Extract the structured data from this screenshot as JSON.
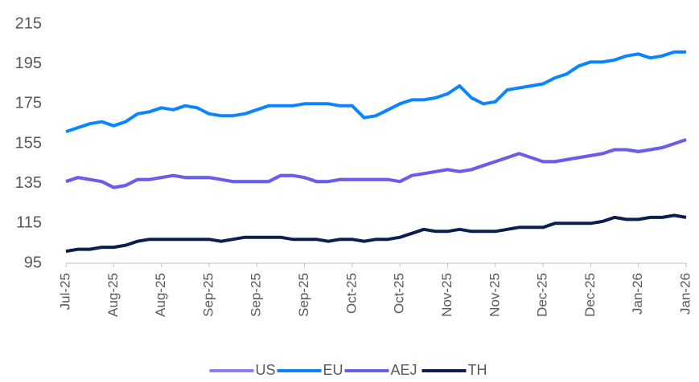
{
  "chart_data": {
    "type": "line",
    "categories": [
      "Jul-25",
      null,
      null,
      null,
      "Aug-25",
      null,
      null,
      null,
      "Aug-25",
      null,
      null,
      null,
      "Sep-25",
      null,
      null,
      null,
      "Sep-25",
      null,
      null,
      null,
      "Sep-25",
      null,
      null,
      null,
      "Oct-25",
      null,
      null,
      null,
      "Oct-25",
      null,
      null,
      null,
      "Nov-25",
      null,
      null,
      null,
      "Nov-25",
      null,
      null,
      null,
      "Dec-25",
      null,
      null,
      null,
      "Dec-25",
      null,
      null,
      null,
      "Jan-26",
      null,
      null,
      null,
      "Jan-26"
    ],
    "series": [
      {
        "name": "US",
        "color": "#8c7ff5",
        "values": [
          136,
          138,
          137,
          136,
          133,
          134,
          137,
          137,
          138,
          139,
          138,
          138,
          138,
          137,
          136,
          136,
          136,
          136,
          139,
          139,
          138,
          136,
          136,
          137,
          137,
          137,
          137,
          137,
          136,
          139,
          140,
          141,
          142,
          141,
          142,
          144,
          146,
          148,
          150,
          148,
          146,
          146,
          147,
          148,
          149,
          150,
          152,
          152,
          151,
          152,
          153,
          155,
          157
        ]
      },
      {
        "name": "EU",
        "color": "#0a84ff",
        "values": [
          161,
          163,
          165,
          166,
          164,
          166,
          170,
          171,
          173,
          172,
          174,
          173,
          170,
          169,
          169,
          170,
          172,
          174,
          174,
          174,
          175,
          175,
          175,
          174,
          174,
          168,
          169,
          172,
          175,
          177,
          177,
          178,
          180,
          184,
          178,
          175,
          176,
          182,
          183,
          184,
          185,
          188,
          190,
          194,
          196,
          196,
          197,
          199,
          200,
          198,
          199,
          201,
          201
        ]
      },
      {
        "name": "AEJ",
        "color": "#6a5ced",
        "values": [
          136,
          138,
          137,
          136,
          133,
          134,
          137,
          137,
          138,
          139,
          138,
          138,
          138,
          137,
          136,
          136,
          136,
          136,
          139,
          139,
          138,
          136,
          136,
          137,
          137,
          137,
          137,
          137,
          136,
          139,
          140,
          141,
          142,
          141,
          142,
          144,
          146,
          148,
          150,
          148,
          146,
          146,
          147,
          148,
          149,
          150,
          152,
          152,
          151,
          152,
          153,
          155,
          157
        ]
      },
      {
        "name": "TH",
        "color": "#0b1f4f",
        "values": [
          101,
          102,
          102,
          103,
          103,
          104,
          106,
          107,
          107,
          107,
          107,
          107,
          107,
          106,
          107,
          108,
          108,
          108,
          108,
          107,
          107,
          107,
          106,
          107,
          107,
          106,
          107,
          107,
          108,
          110,
          112,
          111,
          111,
          112,
          111,
          111,
          111,
          112,
          113,
          113,
          113,
          115,
          115,
          115,
          115,
          116,
          118,
          117,
          117,
          118,
          118,
          119,
          118
        ]
      }
    ],
    "ylim": [
      95,
      215
    ],
    "yticks": [
      95,
      115,
      135,
      155,
      175,
      195,
      215
    ],
    "grid": false
  }
}
